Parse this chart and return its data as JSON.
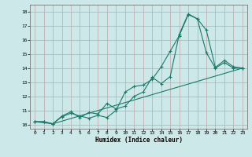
{
  "xlabel": "Humidex (Indice chaleur)",
  "ylabel": "",
  "xlim": [
    -0.5,
    23.5
  ],
  "ylim": [
    9.7,
    18.5
  ],
  "xticks": [
    0,
    1,
    2,
    3,
    4,
    5,
    6,
    7,
    8,
    9,
    10,
    11,
    12,
    13,
    14,
    15,
    16,
    17,
    18,
    19,
    20,
    21,
    22,
    23
  ],
  "yticks": [
    10,
    11,
    12,
    13,
    14,
    15,
    16,
    17,
    18
  ],
  "bg_color": "#cce8e8",
  "line_color": "#1a7a6a",
  "line1_x": [
    0,
    1,
    2,
    3,
    4,
    5,
    6,
    7,
    8,
    9,
    10,
    11,
    12,
    13,
    14,
    15,
    16,
    17,
    18,
    19,
    20,
    21,
    22,
    23
  ],
  "line1_y": [
    10.2,
    10.2,
    10.05,
    10.55,
    10.8,
    10.6,
    10.45,
    10.65,
    10.5,
    11.0,
    12.3,
    12.7,
    12.8,
    13.2,
    14.1,
    15.2,
    16.3,
    17.8,
    17.5,
    15.1,
    14.0,
    14.4,
    14.0,
    14.0
  ],
  "line2_x": [
    0,
    1,
    2,
    3,
    4,
    5,
    6,
    7,
    8,
    9,
    10,
    11,
    12,
    13,
    14,
    15,
    16,
    17,
    18,
    19,
    20,
    21,
    22,
    23
  ],
  "line2_y": [
    10.2,
    10.2,
    10.05,
    10.6,
    10.9,
    10.5,
    10.85,
    10.75,
    11.5,
    11.1,
    11.3,
    12.0,
    12.3,
    13.35,
    12.9,
    13.4,
    16.4,
    17.85,
    17.5,
    16.7,
    14.05,
    14.55,
    14.1,
    14.0
  ],
  "line3_x": [
    0,
    2,
    23
  ],
  "line3_y": [
    10.2,
    10.05,
    14.0
  ]
}
